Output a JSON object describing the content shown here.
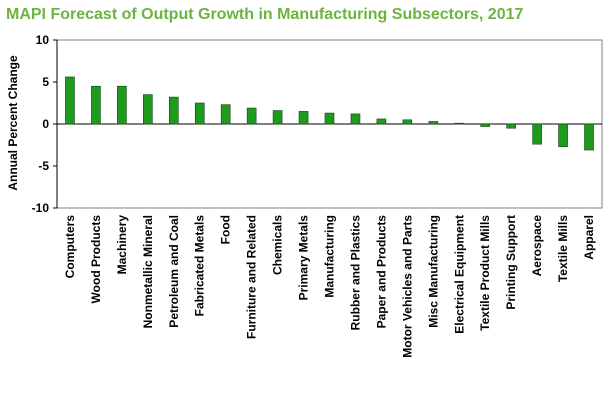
{
  "title": "MAPI Forecast of Output Growth in Manufacturing Subsectors, 2017",
  "colors": {
    "title": "#6db33f",
    "bar_fill": "#1e9a1e",
    "bar_stroke": "#0a4a0a",
    "axis": "#000000",
    "plot_border": "#808080"
  },
  "chart_data": {
    "type": "bar",
    "title": "MAPI Forecast of Output Growth in Manufacturing Subsectors, 2017",
    "xlabel": "",
    "ylabel": "Annual Percent Change",
    "ylim": [
      -10,
      10
    ],
    "yticks": [
      10,
      5,
      0,
      -5,
      -10
    ],
    "grid": false,
    "categories": [
      "Computers",
      "Wood Products",
      "Machinery",
      "Nonmetallic Mineral",
      "Petroleum and Coal",
      "Fabricated Metals",
      "Food",
      "Furniture and Related",
      "Chemicals",
      "Primary Metals",
      "Manufacturing",
      "Rubber and Plastics",
      "Paper and Products",
      "Motor Vehicles and Parts",
      "Misc Manufacturing",
      "Electrical Equipment",
      "Textile Product Mills",
      "Printing Support",
      "Aerospace",
      "Textile Mills",
      "Apparel"
    ],
    "values": [
      5.6,
      4.5,
      4.5,
      3.5,
      3.2,
      2.5,
      2.3,
      1.9,
      1.6,
      1.5,
      1.3,
      1.2,
      0.6,
      0.5,
      0.3,
      0.1,
      -0.3,
      -0.5,
      -2.4,
      -2.7,
      -3.1
    ]
  }
}
